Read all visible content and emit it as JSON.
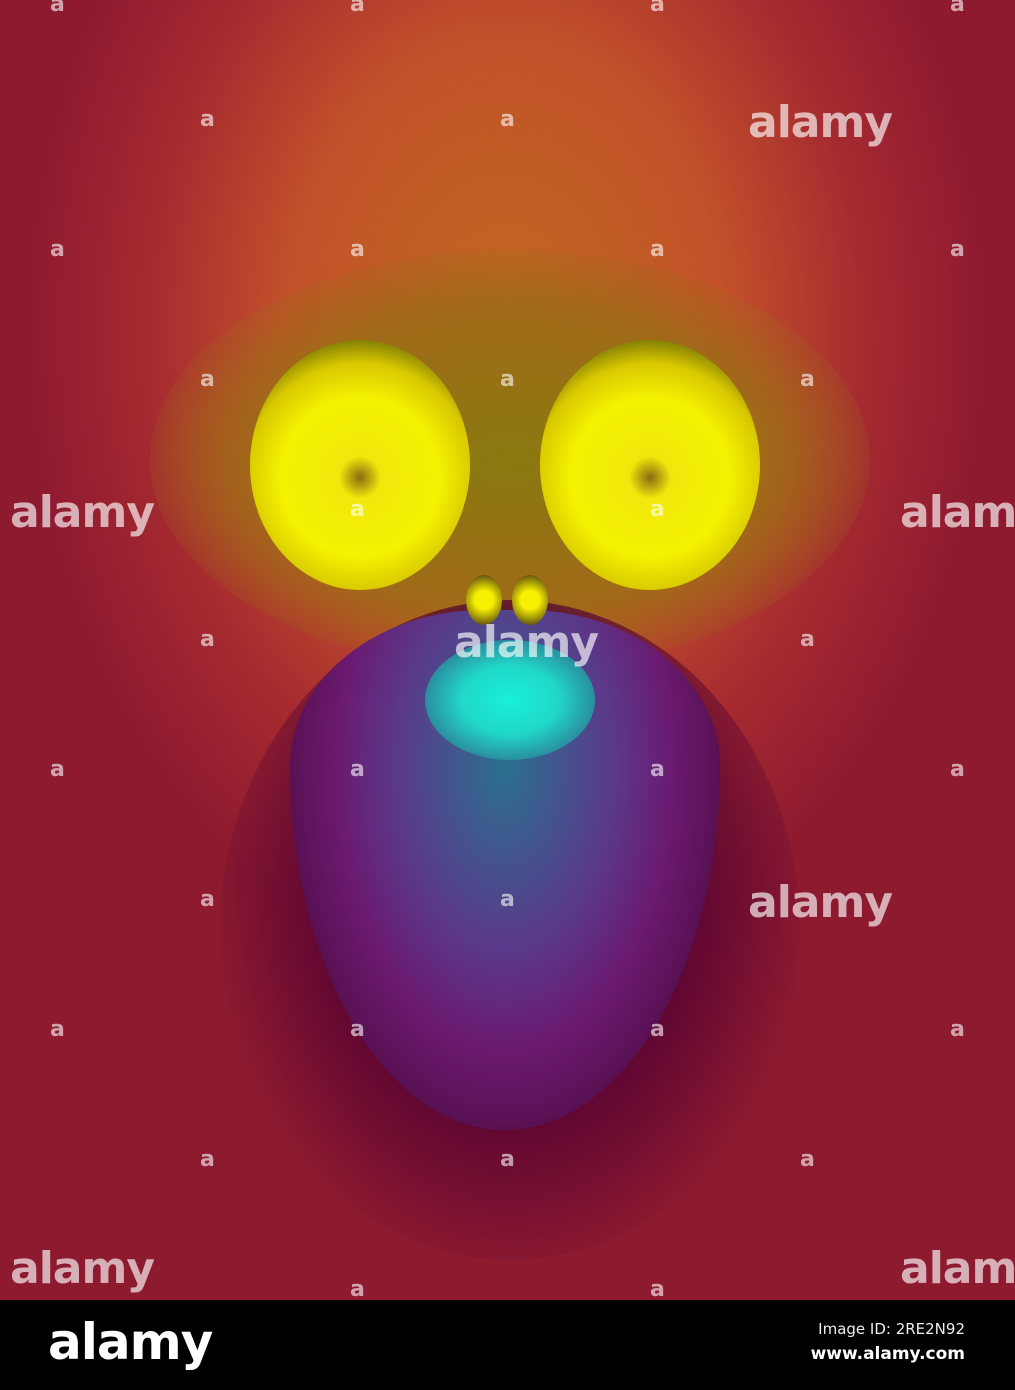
{
  "watermark": {
    "small": "a",
    "big": "alamy"
  },
  "footer": {
    "logo": "alamy",
    "image_id": "Image ID: 2RE2N92",
    "website": "www.alamy.com"
  },
  "colors": {
    "yellow": "#f5f200",
    "cyan": "#18f0d8",
    "orange": "#c0691f",
    "crimson": "#9a1c30",
    "purple": "#6a1a70"
  }
}
